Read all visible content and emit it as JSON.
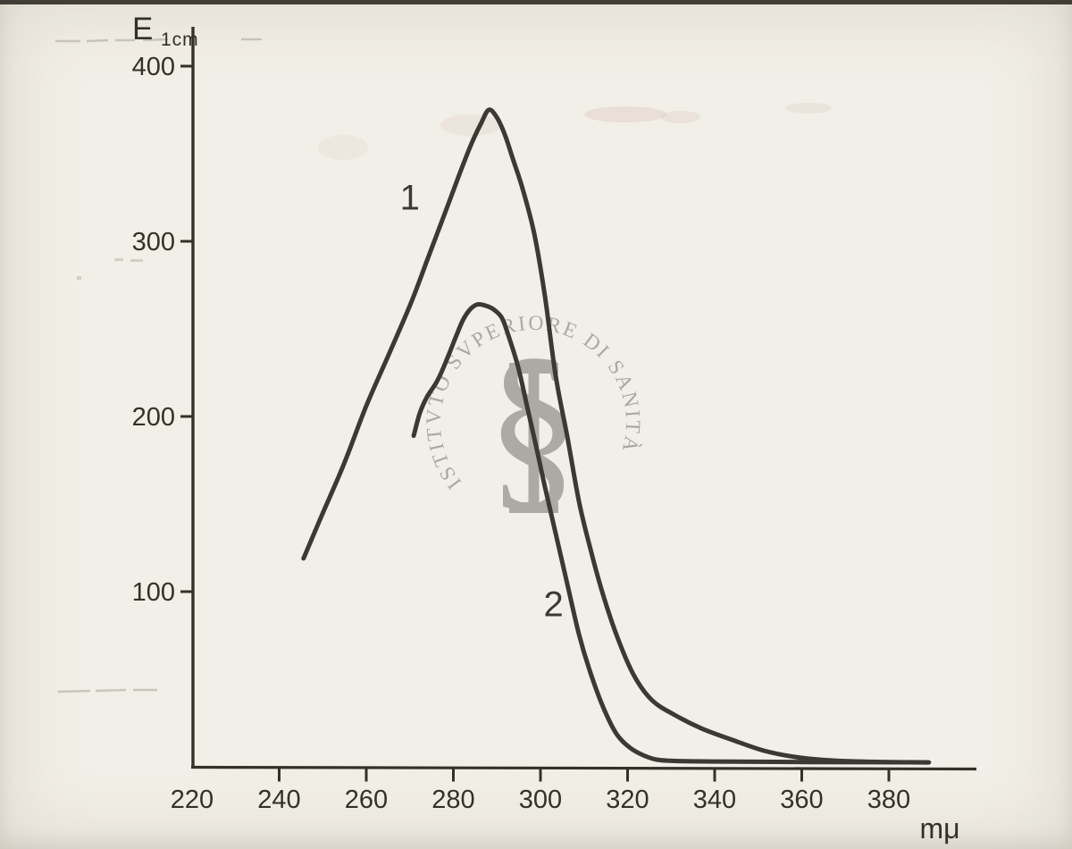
{
  "figure": {
    "background_color": "#f2efe8",
    "ink_color": "#3c3935",
    "axis_color": "#343128",
    "watermark_color": "#a6a39d"
  },
  "y_axis": {
    "title_main": "E",
    "title_sub": "1cm"
  },
  "x_axis": {
    "unit_label": "mμ"
  },
  "watermark": {
    "seal_text": "ISTITVTO SVPERIORE DI SANITÀ",
    "emblem": "staff-and-serpent",
    "emblem_glyph": "§"
  },
  "chart_data": {
    "type": "line",
    "title": "",
    "xlabel": "mμ",
    "ylabel": "E 1cm",
    "xlim": [
      219.6,
      400
    ],
    "ylim": [
      0,
      422
    ],
    "grid": false,
    "legend_position": "none",
    "x_ticks": [
      220,
      240,
      260,
      280,
      300,
      320,
      340,
      360,
      380
    ],
    "x_ticks_without_mark": [
      220
    ],
    "y_ticks": [
      100,
      200,
      300,
      400
    ],
    "series": [
      {
        "name": "1",
        "label": "1",
        "label_pos": {
          "x": 270,
          "y": 318
        },
        "points": [
          [
            245.6,
            119
          ],
          [
            249.7,
            143
          ],
          [
            254.9,
            173
          ],
          [
            260.0,
            206
          ],
          [
            265.1,
            235
          ],
          [
            270.3,
            265
          ],
          [
            274.4,
            292
          ],
          [
            278.5,
            319
          ],
          [
            281.5,
            339
          ],
          [
            284.2,
            356
          ],
          [
            286.3,
            367
          ],
          [
            288.1,
            375
          ],
          [
            289.9,
            371
          ],
          [
            291.8,
            361
          ],
          [
            293.8,
            346
          ],
          [
            295.9,
            330
          ],
          [
            298.6,
            304
          ],
          [
            301.0,
            269
          ],
          [
            303.5,
            223
          ],
          [
            306.2,
            188
          ],
          [
            308.8,
            152
          ],
          [
            311.3,
            126
          ],
          [
            314.4,
            98
          ],
          [
            317.8,
            73
          ],
          [
            321.5,
            52
          ],
          [
            325.6,
            38
          ],
          [
            330.8,
            29.6
          ],
          [
            336.9,
            22
          ],
          [
            344.1,
            15.3
          ],
          [
            351.3,
            9.2
          ],
          [
            358.5,
            5.6
          ],
          [
            366.7,
            3.6
          ],
          [
            376.9,
            2.8
          ],
          [
            389.2,
            2.5
          ]
        ]
      },
      {
        "name": "2",
        "label": "2",
        "label_pos": {
          "x": 303,
          "y": 86
        },
        "points": [
          [
            270.9,
            189
          ],
          [
            272.3,
            202
          ],
          [
            273.9,
            211
          ],
          [
            276.0,
            219
          ],
          [
            277.4,
            226
          ],
          [
            278.9,
            235
          ],
          [
            280.5,
            245
          ],
          [
            282.2,
            255
          ],
          [
            283.8,
            261
          ],
          [
            285.6,
            264
          ],
          [
            287.7,
            263
          ],
          [
            289.3,
            261
          ],
          [
            291.2,
            256
          ],
          [
            292.8,
            245
          ],
          [
            294.9,
            228
          ],
          [
            296.9,
            206
          ],
          [
            299.0,
            183
          ],
          [
            301.0,
            160
          ],
          [
            303.5,
            133
          ],
          [
            306.2,
            104
          ],
          [
            308.8,
            76
          ],
          [
            311.3,
            55
          ],
          [
            314.4,
            34
          ],
          [
            317.4,
            19
          ],
          [
            320.5,
            11
          ],
          [
            323.6,
            6.6
          ],
          [
            326.7,
            4.1
          ],
          [
            331.0,
            3.3
          ],
          [
            340.0,
            3.0
          ],
          [
            360.5,
            2.7
          ],
          [
            389.0,
            2.5
          ]
        ]
      }
    ]
  }
}
